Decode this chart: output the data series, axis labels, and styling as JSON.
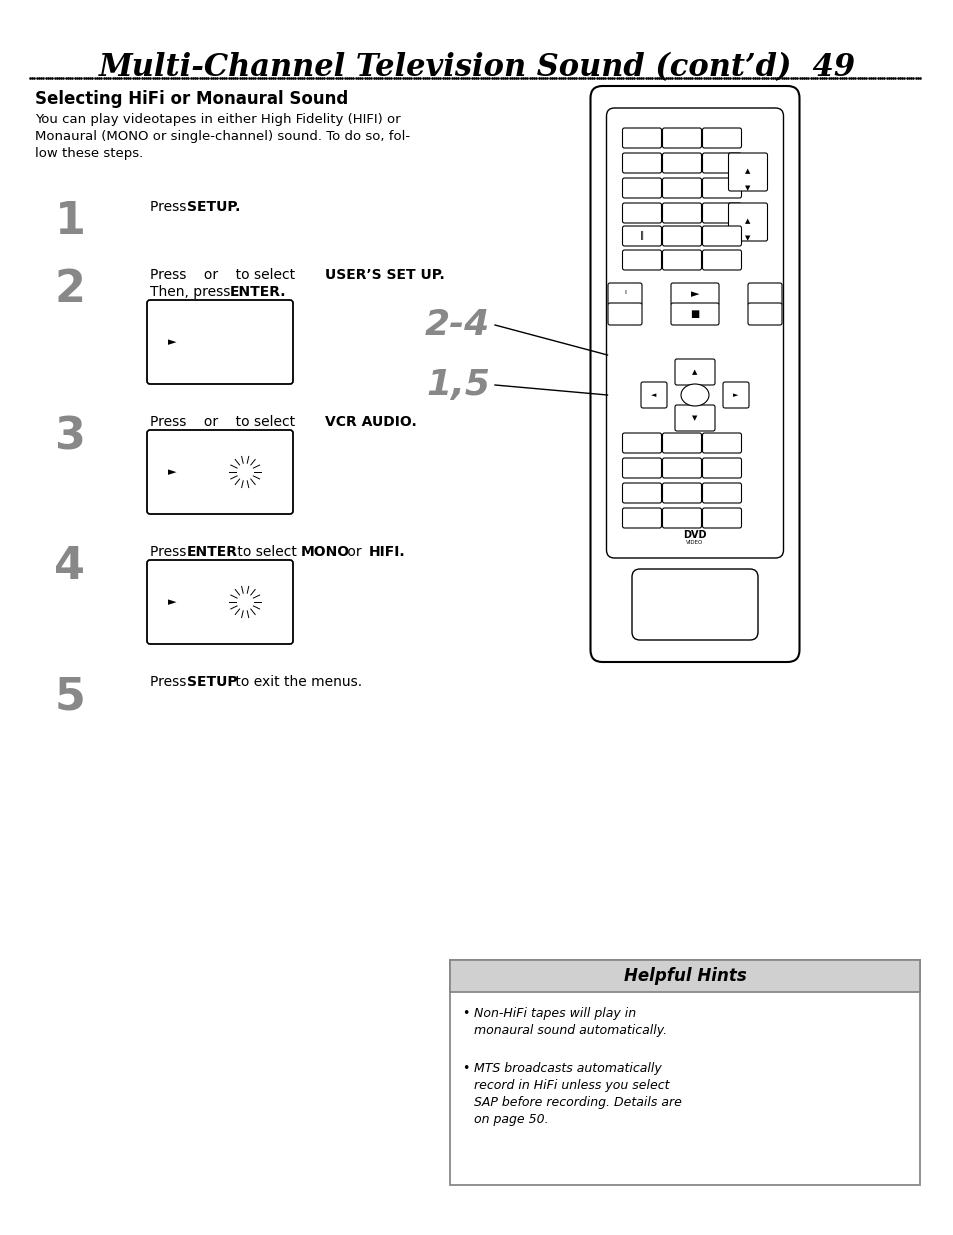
{
  "title": "Multi-Channel Television Sound (cont’d)  49",
  "subtitle": "Selecting HiFi or Monaural Sound",
  "intro_text": "You can play videotapes in either High Fidelity (HIFI) or\nMonaural (MONO or single-channel) sound. To do so, fol-\nlow these steps.",
  "step1_plain": "Press ",
  "step1_bold": "SETUP.",
  "step2_plain1": "Press    or    to select ",
  "step2_bold1": "USER’S SET UP.",
  "step2_plain2": "Then, press ",
  "step2_bold2": "ENTER.",
  "step3_plain1": "Press    or    to select ",
  "step3_bold1": "VCR AUDIO.",
  "step4_plain1": "Press ",
  "step4_bold1": "ENTER",
  "step4_plain2": " to select ",
  "step4_bold2": "MONO",
  "step4_plain3": " or ",
  "step4_bold3": "HIFI.",
  "step5_plain1": "Press ",
  "step5_bold1": "SETUP",
  "step5_plain2": " to exit the menus.",
  "helpful_hints_title": "Helpful Hints",
  "hint1": "Non-HiFi tapes will play in\nmonaural sound automatically.",
  "hint2": "MTS broadcasts automatically\nrecord in HiFi unless you select\nSAP before recording. Details are\non page 50.",
  "bg_color": "#ffffff",
  "text_color": "#000000",
  "step_number_color": "#888888",
  "hint_bg": "#f0f0f0",
  "hint_title_bg": "#d0d0d0",
  "hint_border": "#888888"
}
